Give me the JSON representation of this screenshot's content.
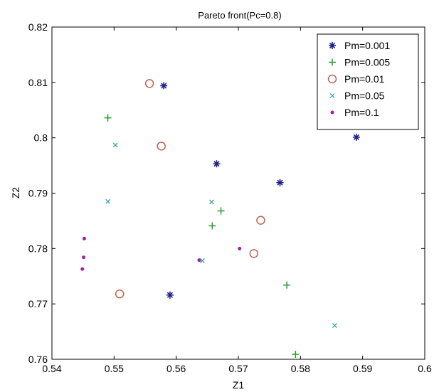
{
  "chart_data": {
    "type": "scatter",
    "title": "Pareto front(Pc=0.8)",
    "xlabel": "Z1",
    "ylabel": "Z2",
    "xlim": [
      0.54,
      0.6
    ],
    "ylim": [
      0.76,
      0.82
    ],
    "xticks": [
      "0.54",
      "0.55",
      "0.56",
      "0.57",
      "0.58",
      "0.59",
      "0.6"
    ],
    "yticks": [
      "0.76",
      "0.77",
      "0.78",
      "0.79",
      "0.8",
      "0.81",
      "0.82"
    ],
    "grid": false,
    "legend_position": "top-right",
    "series": [
      {
        "name": "Pm=0.001",
        "marker": "star",
        "color": "#1f1f8f",
        "points": [
          [
            0.558,
            0.8094
          ],
          [
            0.5665,
            0.7953
          ],
          [
            0.5767,
            0.7919
          ],
          [
            0.589,
            0.8001
          ],
          [
            0.559,
            0.7716
          ]
        ]
      },
      {
        "name": "Pm=0.005",
        "marker": "plus",
        "color": "#2a9a2a",
        "points": [
          [
            0.549,
            0.8036
          ],
          [
            0.5672,
            0.7868
          ],
          [
            0.5658,
            0.7841
          ],
          [
            0.5778,
            0.7734
          ],
          [
            0.5792,
            0.7609
          ]
        ]
      },
      {
        "name": "Pm=0.01",
        "marker": "circle",
        "color": "#c06050",
        "points": [
          [
            0.5557,
            0.8098
          ],
          [
            0.5576,
            0.7985
          ],
          [
            0.5736,
            0.7851
          ],
          [
            0.5725,
            0.7791
          ],
          [
            0.5509,
            0.7718
          ]
        ]
      },
      {
        "name": "Pm=0.05",
        "marker": "x",
        "color": "#2aa0a0",
        "points": [
          [
            0.5502,
            0.7987
          ],
          [
            0.549,
            0.7885
          ],
          [
            0.5657,
            0.7884
          ],
          [
            0.5642,
            0.7778
          ],
          [
            0.5855,
            0.7661
          ]
        ]
      },
      {
        "name": "Pm=0.1",
        "marker": "dot",
        "color": "#a020a0",
        "points": [
          [
            0.5452,
            0.7818
          ],
          [
            0.5451,
            0.7784
          ],
          [
            0.5449,
            0.7763
          ],
          [
            0.5637,
            0.7779
          ],
          [
            0.5702,
            0.78
          ]
        ]
      }
    ]
  }
}
